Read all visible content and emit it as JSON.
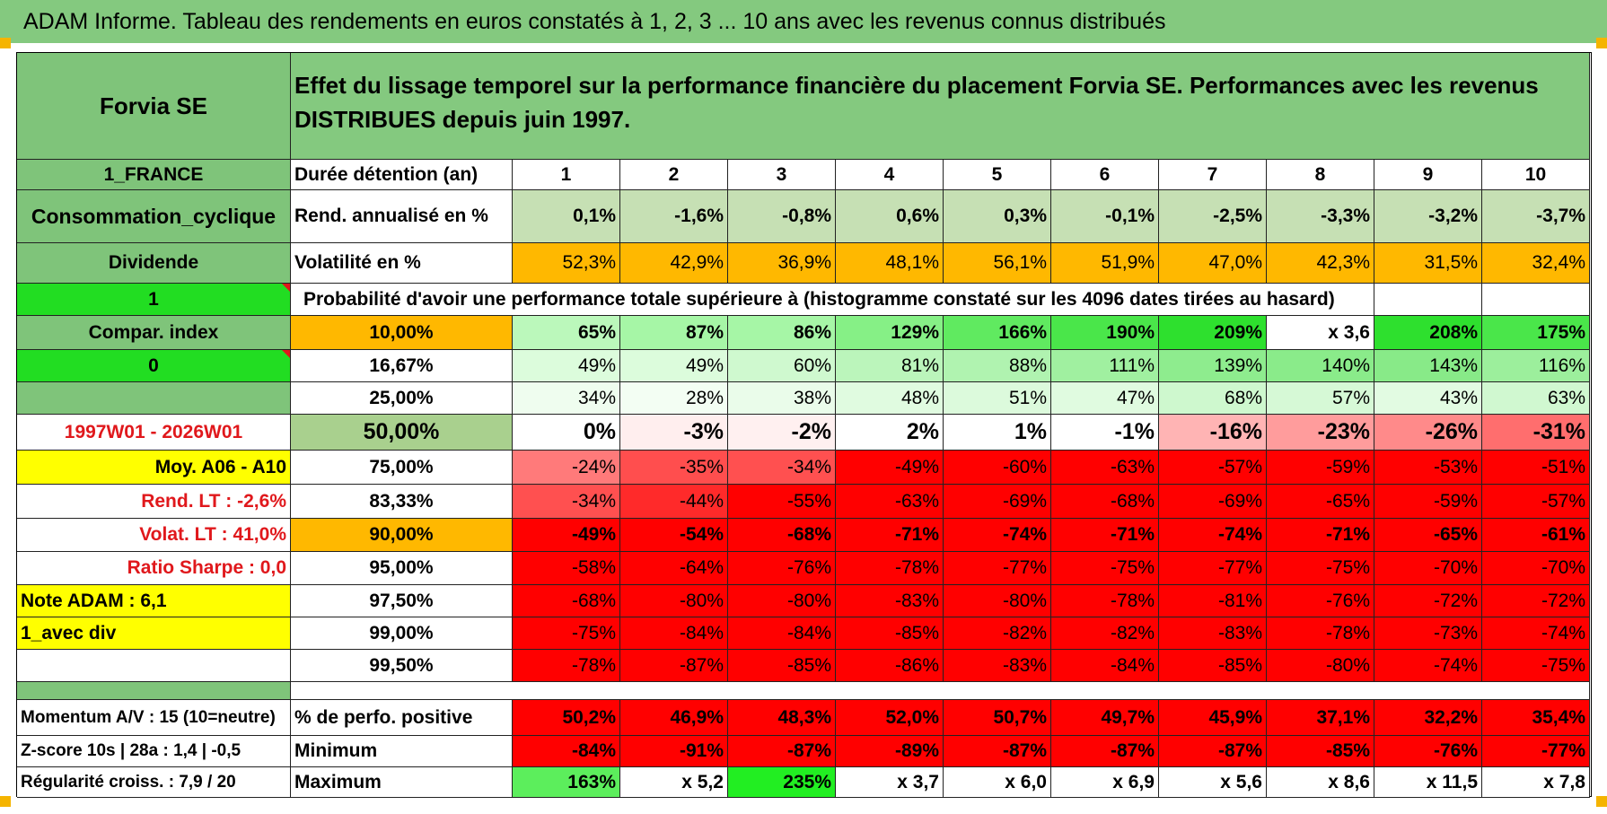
{
  "title": "ADAM Informe. Tableau des rendements en euros constatés à 1, 2, 3 ... 10 ans avec les revenus connus distribués",
  "header": {
    "stock": "Forvia SE",
    "description": "Effet du lissage temporel sur la performance financière du placement Forvia SE. Performances avec les revenus DISTRIBUES depuis juin 1997."
  },
  "left": {
    "country": "1_FRANCE",
    "sector": "Consommation_cyclique",
    "type": "Dividende",
    "one": "1",
    "compar": "Compar. index",
    "zero": "0",
    "blank": "",
    "period": "1997W01 - 2026W01",
    "moy": "Moy. A06 - A10",
    "rend_lt": "Rend. LT :    -2,6%",
    "volat_lt": "Volat. LT :   41,0%",
    "sharpe": "Ratio Sharpe :     0,0",
    "note": "Note ADAM : 6,1",
    "avec_div": "1_avec div"
  },
  "labels": {
    "duree": "Durée détention (an)",
    "rend": "Rend. annualisé en %",
    "vol": "Volatilité en %",
    "prob": "Probabilité d'avoir une performance totale supérieure à (histogramme constaté sur les 4096 dates tirées au hasard)"
  },
  "years": [
    "1",
    "2",
    "3",
    "4",
    "5",
    "6",
    "7",
    "8",
    "9",
    "10"
  ],
  "rend_values": [
    "0,1%",
    "-1,6%",
    "-0,8%",
    "0,6%",
    "0,3%",
    "-0,1%",
    "-2,5%",
    "-3,3%",
    "-3,2%",
    "-3,7%"
  ],
  "vol_values": [
    "52,3%",
    "42,9%",
    "36,9%",
    "48,1%",
    "56,1%",
    "51,9%",
    "47,0%",
    "42,3%",
    "31,5%",
    "32,4%"
  ],
  "prob_rows": [
    {
      "p": "10,00%",
      "v": [
        "65%",
        "87%",
        "86%",
        "129%",
        "166%",
        "190%",
        "209%",
        "x 3,6",
        "208%",
        "175%"
      ]
    },
    {
      "p": "16,67%",
      "v": [
        "49%",
        "49%",
        "60%",
        "81%",
        "88%",
        "111%",
        "139%",
        "140%",
        "143%",
        "116%"
      ]
    },
    {
      "p": "25,00%",
      "v": [
        "34%",
        "28%",
        "38%",
        "48%",
        "51%",
        "47%",
        "68%",
        "57%",
        "43%",
        "63%"
      ]
    },
    {
      "p": "50,00%",
      "v": [
        "0%",
        "-3%",
        "-2%",
        "2%",
        "1%",
        "-1%",
        "-16%",
        "-23%",
        "-26%",
        "-31%"
      ]
    },
    {
      "p": "75,00%",
      "v": [
        "-24%",
        "-35%",
        "-34%",
        "-49%",
        "-60%",
        "-63%",
        "-57%",
        "-59%",
        "-53%",
        "-51%"
      ]
    },
    {
      "p": "83,33%",
      "v": [
        "-34%",
        "-44%",
        "-55%",
        "-63%",
        "-69%",
        "-68%",
        "-69%",
        "-65%",
        "-59%",
        "-57%"
      ]
    },
    {
      "p": "90,00%",
      "v": [
        "-49%",
        "-54%",
        "-68%",
        "-71%",
        "-74%",
        "-71%",
        "-74%",
        "-71%",
        "-65%",
        "-61%"
      ]
    },
    {
      "p": "95,00%",
      "v": [
        "-58%",
        "-64%",
        "-76%",
        "-78%",
        "-77%",
        "-75%",
        "-77%",
        "-75%",
        "-70%",
        "-70%"
      ]
    },
    {
      "p": "97,50%",
      "v": [
        "-68%",
        "-80%",
        "-80%",
        "-83%",
        "-80%",
        "-78%",
        "-81%",
        "-76%",
        "-72%",
        "-72%"
      ]
    },
    {
      "p": "99,00%",
      "v": [
        "-75%",
        "-84%",
        "-84%",
        "-85%",
        "-82%",
        "-82%",
        "-83%",
        "-78%",
        "-73%",
        "-74%"
      ]
    },
    {
      "p": "99,50%",
      "v": [
        "-78%",
        "-87%",
        "-85%",
        "-86%",
        "-83%",
        "-84%",
        "-85%",
        "-80%",
        "-74%",
        "-75%"
      ]
    }
  ],
  "bottom": [
    {
      "left": "Momentum A/V : 15 (10=neutre)",
      "label": "% de perfo. positive",
      "v": [
        "50,2%",
        "46,9%",
        "48,3%",
        "52,0%",
        "50,7%",
        "49,7%",
        "45,9%",
        "37,1%",
        "32,2%",
        "35,4%"
      ]
    },
    {
      "left": "Z-score 10s | 28a : 1,4 | -0,5",
      "label": "Minimum",
      "v": [
        "-84%",
        "-91%",
        "-87%",
        "-89%",
        "-87%",
        "-87%",
        "-87%",
        "-85%",
        "-76%",
        "-77%"
      ]
    },
    {
      "left": "Régularité croiss. : 7,9 / 20",
      "label": "Maximum",
      "v": [
        "163%",
        "x 5,2",
        "235%",
        "x 3,7",
        "x 6,0",
        "x 6,9",
        "x 5,6",
        "x 8,6",
        "x 11,5",
        "x 7,8"
      ]
    }
  ],
  "colors": {
    "header_green": "#84c97f",
    "mid_green": "#7fc47a",
    "bright_green": "#22dd22",
    "orange": "#ffb800",
    "yellow": "#ffff00",
    "red": "#ff0000",
    "text_red": "#e0181c"
  },
  "cell_colors": {
    "rend": [
      "#c6e0b4",
      "#c6e0b4",
      "#c6e0b4",
      "#c6e0b4",
      "#c6e0b4",
      "#c6e0b4",
      "#c6e0b4",
      "#c6e0b4",
      "#c6e0b4",
      "#c6e0b4"
    ],
    "vol": [
      "#ffb800",
      "#ffb800",
      "#ffb800",
      "#ffb800",
      "#ffb800",
      "#ffb800",
      "#ffb800",
      "#ffb800",
      "#ffb800",
      "#ffb800"
    ],
    "prob": [
      [
        "#bbf8bb",
        "#a6f6a6",
        "#a6f6a6",
        "#86f086",
        "#60ea60",
        "#4ae64a",
        "#2ee02e",
        "#ffffff",
        "#2ee02e",
        "#4ae64a"
      ],
      [
        "#dcfcdc",
        "#dcfcdc",
        "#cff9cf",
        "#bbf5bb",
        "#b0f3b0",
        "#a0f0a0",
        "#8eec8e",
        "#8aeb8a",
        "#88ea88",
        "#9cef9c"
      ],
      [
        "#effdef",
        "#f3fef3",
        "#eafcea",
        "#e0fbe0",
        "#dcfadc",
        "#e0fbe0",
        "#cef8ce",
        "#d6f9d6",
        "#e2fbe2",
        "#d0f8d0"
      ],
      [
        "#ffffff",
        "#ffeeee",
        "#fff0f0",
        "#ffffff",
        "#ffffff",
        "#ffffff",
        "#ffb4b4",
        "#ff9c9c",
        "#ff8a8a",
        "#ff6e6e"
      ],
      [
        "#ff7a7a",
        "#ff4e4e",
        "#ff5050",
        "#ff0000",
        "#ff0000",
        "#ff0000",
        "#ff0000",
        "#ff0000",
        "#ff0000",
        "#ff0000"
      ],
      [
        "#ff5050",
        "#ff2a2a",
        "#ff0000",
        "#ff0000",
        "#ff0000",
        "#ff0000",
        "#ff0000",
        "#ff0000",
        "#ff0000",
        "#ff0000"
      ],
      [
        "#ff0000",
        "#ff0000",
        "#ff0000",
        "#ff0000",
        "#ff0000",
        "#ff0000",
        "#ff0000",
        "#ff0000",
        "#ff0000",
        "#ff0000"
      ],
      [
        "#ff0000",
        "#ff0000",
        "#ff0000",
        "#ff0000",
        "#ff0000",
        "#ff0000",
        "#ff0000",
        "#ff0000",
        "#ff0000",
        "#ff0000"
      ],
      [
        "#ff0000",
        "#ff0000",
        "#ff0000",
        "#ff0000",
        "#ff0000",
        "#ff0000",
        "#ff0000",
        "#ff0000",
        "#ff0000",
        "#ff0000"
      ],
      [
        "#ff0000",
        "#ff0000",
        "#ff0000",
        "#ff0000",
        "#ff0000",
        "#ff0000",
        "#ff0000",
        "#ff0000",
        "#ff0000",
        "#ff0000"
      ],
      [
        "#ff0000",
        "#ff0000",
        "#ff0000",
        "#ff0000",
        "#ff0000",
        "#ff0000",
        "#ff0000",
        "#ff0000",
        "#ff0000",
        "#ff0000"
      ]
    ],
    "bottom": [
      [
        "#ff0000",
        "#ff0000",
        "#ff0000",
        "#ff0000",
        "#ff0000",
        "#ff0000",
        "#ff0000",
        "#ff0000",
        "#ff0000",
        "#ff0000"
      ],
      [
        "#ff0000",
        "#ff0000",
        "#ff0000",
        "#ff0000",
        "#ff0000",
        "#ff0000",
        "#ff0000",
        "#ff0000",
        "#ff0000",
        "#ff0000"
      ],
      [
        "#5cee5c",
        "#ffffff",
        "#22ee22",
        "#ffffff",
        "#ffffff",
        "#ffffff",
        "#ffffff",
        "#ffffff",
        "#ffffff",
        "#ffffff"
      ]
    ]
  }
}
